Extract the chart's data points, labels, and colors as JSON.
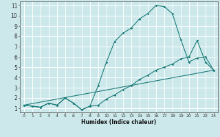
{
  "xlabel": "Humidex (Indice chaleur)",
  "bg_color": "#cce8ea",
  "grid_color": "#ffffff",
  "line_color": "#1a7a78",
  "xlim": [
    -0.5,
    23.5
  ],
  "ylim": [
    0.6,
    11.4
  ],
  "xticks": [
    0,
    1,
    2,
    3,
    4,
    5,
    6,
    7,
    8,
    9,
    10,
    11,
    12,
    13,
    14,
    15,
    16,
    17,
    18,
    19,
    20,
    21,
    22,
    23
  ],
  "yticks": [
    1,
    2,
    3,
    4,
    5,
    6,
    7,
    8,
    9,
    10,
    11
  ],
  "line1_x": [
    0,
    1,
    2,
    3,
    4,
    5,
    6,
    7,
    8,
    9,
    10,
    11,
    12,
    13,
    14,
    15,
    16,
    17,
    18,
    19,
    20,
    21,
    22,
    23
  ],
  "line1_y": [
    1.3,
    1.2,
    1.1,
    1.5,
    1.3,
    2.0,
    1.5,
    0.85,
    1.2,
    3.2,
    5.5,
    7.5,
    8.3,
    8.8,
    9.7,
    10.2,
    11.0,
    10.9,
    10.2,
    7.7,
    5.5,
    5.9,
    6.0,
    4.7
  ],
  "line2_x": [
    0,
    1,
    2,
    3,
    4,
    5,
    6,
    7,
    8,
    9,
    10,
    11,
    12,
    13,
    14,
    15,
    16,
    17,
    18,
    19,
    20,
    21,
    22,
    23
  ],
  "line2_y": [
    1.3,
    1.2,
    1.1,
    1.5,
    1.3,
    2.0,
    1.5,
    0.85,
    1.2,
    1.3,
    1.9,
    2.3,
    2.8,
    3.2,
    3.8,
    4.2,
    4.7,
    5.0,
    5.3,
    5.8,
    6.0,
    7.6,
    5.5,
    4.7
  ],
  "line3_x": [
    0,
    23
  ],
  "line3_y": [
    1.3,
    4.7
  ]
}
